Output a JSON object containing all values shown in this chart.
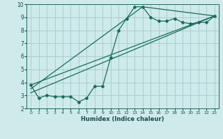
{
  "xlabel": "Humidex (Indice chaleur)",
  "bg_color": "#ceeaea",
  "grid_color": "#aacece",
  "line_color": "#1a6b5a",
  "xlim": [
    -0.5,
    23.5
  ],
  "ylim": [
    2,
    10
  ],
  "xticks": [
    0,
    1,
    2,
    3,
    4,
    5,
    6,
    7,
    8,
    9,
    10,
    11,
    12,
    13,
    14,
    15,
    16,
    17,
    18,
    19,
    20,
    21,
    22,
    23
  ],
  "yticks": [
    2,
    3,
    4,
    5,
    6,
    7,
    8,
    9,
    10
  ],
  "line1_x": [
    0,
    1,
    2,
    3,
    4,
    5,
    6,
    7,
    8,
    9,
    10,
    11,
    12,
    13,
    14,
    15,
    16,
    17,
    18,
    19,
    20,
    21,
    22,
    23
  ],
  "line1_y": [
    3.8,
    2.8,
    3.0,
    2.9,
    2.9,
    2.9,
    2.5,
    2.8,
    3.7,
    3.7,
    5.9,
    8.0,
    8.9,
    9.8,
    9.8,
    9.0,
    8.7,
    8.7,
    8.9,
    8.6,
    8.5,
    8.6,
    8.6,
    9.1
  ],
  "line2_x": [
    0,
    23
  ],
  "line2_y": [
    3.8,
    9.1
  ],
  "line3_x": [
    0,
    14,
    23
  ],
  "line3_y": [
    3.5,
    9.8,
    9.1
  ],
  "line4_x": [
    0,
    23
  ],
  "line4_y": [
    3.2,
    9.1
  ]
}
